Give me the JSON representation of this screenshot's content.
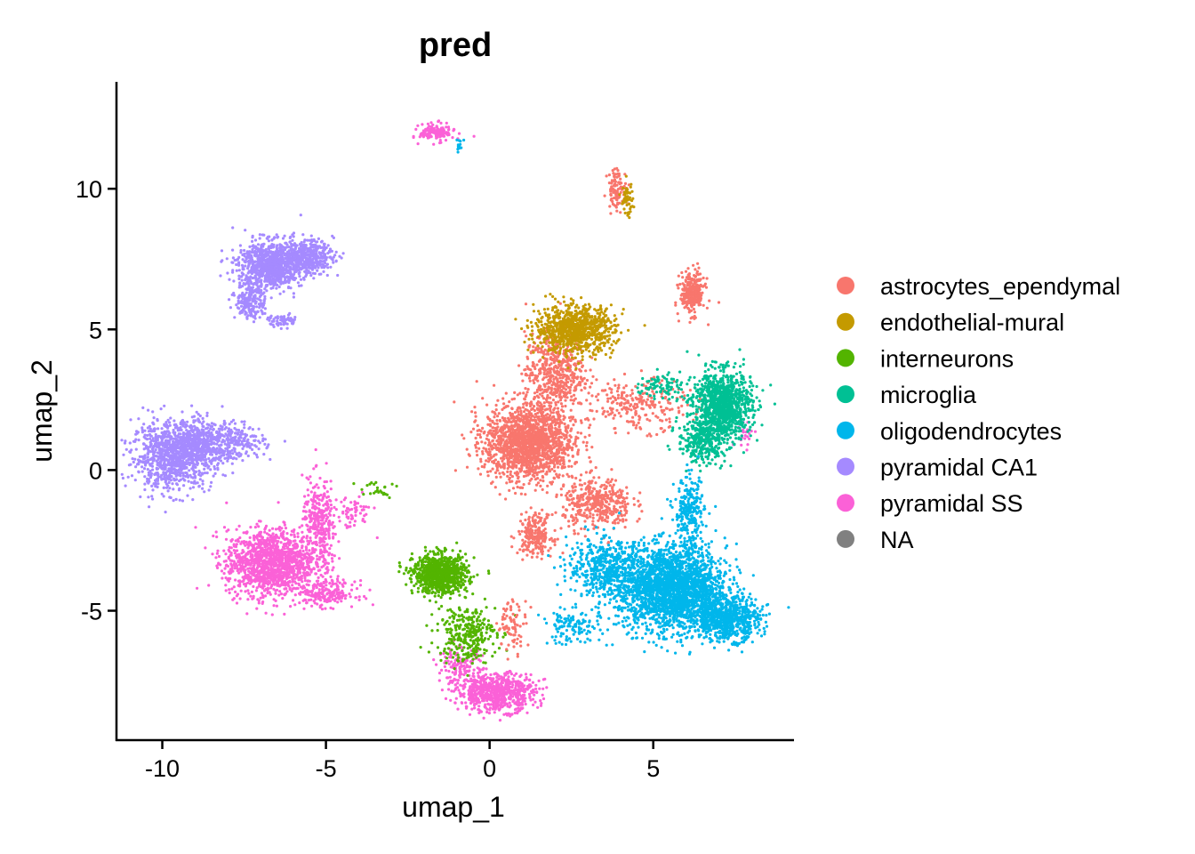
{
  "chart_data": {
    "type": "scatter",
    "title": "pred",
    "xlabel": "umap_1",
    "ylabel": "umap_2",
    "xlim": [
      -11.4,
      9.3
    ],
    "ylim": [
      -9.6,
      13.8
    ],
    "xticks": [
      -10,
      -5,
      0,
      5
    ],
    "xtick_labels": [
      "-10",
      "-5",
      "0",
      "5"
    ],
    "yticks": [
      -5,
      0,
      5,
      10
    ],
    "ytick_labels": [
      "-5",
      "0",
      "5",
      "10"
    ],
    "legend_position": "right",
    "legend": [
      {
        "name": "astrocytes_ependymal",
        "color": "#F8766D"
      },
      {
        "name": "endothelial-mural",
        "color": "#C49A00"
      },
      {
        "name": "interneurons",
        "color": "#53B400"
      },
      {
        "name": "microglia",
        "color": "#00C094"
      },
      {
        "name": "oligodendrocytes",
        "color": "#00B6EB"
      },
      {
        "name": "pyramidal CA1",
        "color": "#A58AFF"
      },
      {
        "name": "pyramidal SS",
        "color": "#FB61D7"
      },
      {
        "name": "NA",
        "color": "#808080"
      }
    ],
    "clusters": [
      {
        "label": "pyramidal CA1",
        "cx": -9.7,
        "cy": 0.5,
        "sx": 0.8,
        "sy": 0.8,
        "n": 900
      },
      {
        "label": "pyramidal CA1",
        "cx": -8.8,
        "cy": 0.9,
        "sx": 0.7,
        "sy": 0.55,
        "n": 500
      },
      {
        "label": "pyramidal CA1",
        "cx": -7.6,
        "cy": 1.0,
        "sx": 0.5,
        "sy": 0.4,
        "n": 150
      },
      {
        "label": "pyramidal CA1",
        "cx": -6.7,
        "cy": 7.3,
        "sx": 0.65,
        "sy": 0.55,
        "n": 900
      },
      {
        "label": "pyramidal CA1",
        "cx": -5.6,
        "cy": 7.6,
        "sx": 0.55,
        "sy": 0.4,
        "n": 400
      },
      {
        "label": "pyramidal CA1",
        "cx": -7.3,
        "cy": 6.0,
        "sx": 0.3,
        "sy": 0.45,
        "n": 200
      },
      {
        "label": "pyramidal CA1",
        "cx": -6.3,
        "cy": 5.3,
        "sx": 0.3,
        "sy": 0.15,
        "n": 60
      },
      {
        "label": "pyramidal SS",
        "cx": -6.7,
        "cy": -3.3,
        "sx": 0.9,
        "sy": 0.8,
        "n": 1300
      },
      {
        "label": "pyramidal SS",
        "cx": -5.2,
        "cy": -2.0,
        "sx": 0.35,
        "sy": 1.1,
        "n": 350
      },
      {
        "label": "pyramidal SS",
        "cx": -5.0,
        "cy": -4.4,
        "sx": 0.6,
        "sy": 0.3,
        "n": 200
      },
      {
        "label": "pyramidal SS",
        "cx": -4.2,
        "cy": -1.5,
        "sx": 0.4,
        "sy": 0.4,
        "n": 60
      },
      {
        "label": "pyramidal SS",
        "cx": -1.6,
        "cy": 12.0,
        "sx": 0.35,
        "sy": 0.2,
        "n": 150
      },
      {
        "label": "pyramidal SS",
        "cx": 0.2,
        "cy": -7.9,
        "sx": 0.8,
        "sy": 0.45,
        "n": 700
      },
      {
        "label": "pyramidal SS",
        "cx": -0.9,
        "cy": -7.0,
        "sx": 0.45,
        "sy": 0.45,
        "n": 150
      },
      {
        "label": "pyramidal SS",
        "cx": 7.8,
        "cy": 1.3,
        "sx": 0.2,
        "sy": 0.3,
        "n": 25
      },
      {
        "label": "interneurons",
        "cx": -1.5,
        "cy": -3.7,
        "sx": 0.55,
        "sy": 0.45,
        "n": 900
      },
      {
        "label": "interneurons",
        "cx": -0.7,
        "cy": -5.8,
        "sx": 0.6,
        "sy": 0.7,
        "n": 300
      },
      {
        "label": "interneurons",
        "cx": -3.6,
        "cy": -0.7,
        "sx": 0.5,
        "sy": 0.3,
        "n": 25
      },
      {
        "label": "astrocytes_ependymal",
        "cx": 1.2,
        "cy": 1.0,
        "sx": 0.9,
        "sy": 0.9,
        "n": 1700
      },
      {
        "label": "astrocytes_ependymal",
        "cx": 2.0,
        "cy": 3.5,
        "sx": 0.6,
        "sy": 0.9,
        "n": 500
      },
      {
        "label": "astrocytes_ependymal",
        "cx": 3.3,
        "cy": -1.2,
        "sx": 0.7,
        "sy": 0.6,
        "n": 400
      },
      {
        "label": "astrocytes_ependymal",
        "cx": 1.4,
        "cy": -2.3,
        "sx": 0.35,
        "sy": 0.5,
        "n": 220
      },
      {
        "label": "astrocytes_ependymal",
        "cx": 6.2,
        "cy": 6.3,
        "sx": 0.25,
        "sy": 0.5,
        "n": 280
      },
      {
        "label": "astrocytes_ependymal",
        "cx": 4.5,
        "cy": 2.3,
        "sx": 1.0,
        "sy": 0.6,
        "n": 250
      },
      {
        "label": "astrocytes_ependymal",
        "cx": 3.9,
        "cy": 10.0,
        "sx": 0.2,
        "sy": 0.5,
        "n": 100
      },
      {
        "label": "astrocytes_ependymal",
        "cx": 0.7,
        "cy": -5.5,
        "sx": 0.3,
        "sy": 0.6,
        "n": 80
      },
      {
        "label": "endothelial-mural",
        "cx": 2.6,
        "cy": 5.0,
        "sx": 0.8,
        "sy": 0.55,
        "n": 900
      },
      {
        "label": "endothelial-mural",
        "cx": 4.2,
        "cy": 9.6,
        "sx": 0.12,
        "sy": 0.4,
        "n": 50
      },
      {
        "label": "microglia",
        "cx": 7.1,
        "cy": 2.3,
        "sx": 0.6,
        "sy": 0.8,
        "n": 1100
      },
      {
        "label": "microglia",
        "cx": 6.5,
        "cy": 1.0,
        "sx": 0.5,
        "sy": 0.5,
        "n": 300
      },
      {
        "label": "microglia",
        "cx": 5.2,
        "cy": 3.0,
        "sx": 0.4,
        "sy": 0.3,
        "n": 80
      },
      {
        "label": "oligodendrocytes",
        "cx": 5.6,
        "cy": -4.2,
        "sx": 1.1,
        "sy": 1.0,
        "n": 2400
      },
      {
        "label": "oligodendrocytes",
        "cx": 7.2,
        "cy": -5.3,
        "sx": 0.7,
        "sy": 0.5,
        "n": 700
      },
      {
        "label": "oligodendrocytes",
        "cx": 3.6,
        "cy": -3.5,
        "sx": 0.8,
        "sy": 0.7,
        "n": 500
      },
      {
        "label": "oligodendrocytes",
        "cx": 6.1,
        "cy": -1.5,
        "sx": 0.3,
        "sy": 0.8,
        "n": 250
      },
      {
        "label": "oligodendrocytes",
        "cx": 2.5,
        "cy": -5.6,
        "sx": 0.6,
        "sy": 0.4,
        "n": 120
      },
      {
        "label": "oligodendrocytes",
        "cx": -0.9,
        "cy": 11.5,
        "sx": 0.1,
        "sy": 0.2,
        "n": 15
      }
    ]
  }
}
